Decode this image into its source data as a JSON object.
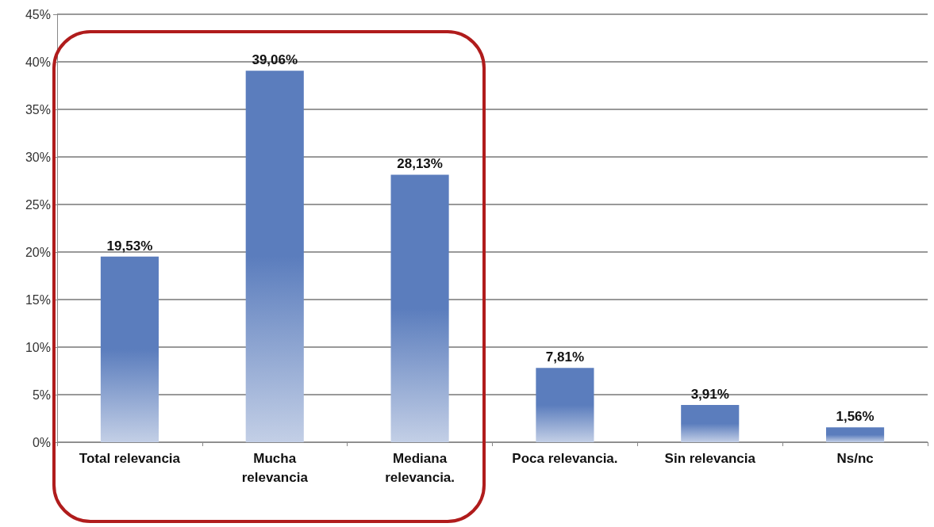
{
  "chart_data": {
    "type": "bar",
    "categories": [
      "Total relevancia",
      "Mucha\nrelevancia",
      "Mediana\nrelevancia.",
      "Poca relevancia.",
      "Sin relevancia",
      "Ns/nc"
    ],
    "values": [
      19.53,
      39.06,
      28.13,
      7.81,
      3.91,
      1.56
    ],
    "value_labels": [
      "19,53%",
      "39,06%",
      "28,13%",
      "7,81%",
      "3,91%",
      "1,56%"
    ],
    "color": "#5b7dbd",
    "ylim": [
      0,
      45
    ],
    "yticks": [
      {
        "value": 0,
        "label": "0%"
      },
      {
        "value": 5,
        "label": "5%"
      },
      {
        "value": 10,
        "label": "10%"
      },
      {
        "value": 15,
        "label": "15%"
      },
      {
        "value": 20,
        "label": "20%"
      },
      {
        "value": 25,
        "label": "25%"
      },
      {
        "value": 30,
        "label": "30%"
      },
      {
        "value": 35,
        "label": "35%"
      },
      {
        "value": 40,
        "label": "40%"
      },
      {
        "value": 45,
        "label": "45%"
      }
    ],
    "grid": "y"
  }
}
